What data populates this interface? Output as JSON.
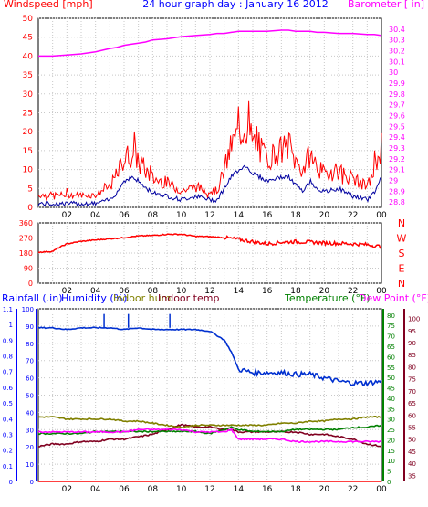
{
  "title": "24 hour graph day : January 16 2012",
  "colors": {
    "wind": "#ff0000",
    "gust": "#ff0000",
    "avgwind": "#0000a0",
    "baro": "#ff00ff",
    "dir": "#ff0000",
    "humidity": "#0030d0",
    "indoorhum": "#808000",
    "indoortemp": "#800020",
    "temperature": "#008000",
    "dewpoint": "#ff00ff",
    "rain": "#ff0000",
    "label_blue": "#0000ff",
    "label_green": "#008000",
    "label_maroon": "#800020"
  },
  "chart_data": [
    {
      "type": "line",
      "title": "24 hour graph day : January 16 2012",
      "ylabel": "Windspeed [mph]",
      "y2label": "Barometer [ in]",
      "ylim": [
        0,
        50
      ],
      "yticks": [
        "0",
        "5",
        "10",
        "15",
        "20",
        "25",
        "30",
        "35",
        "40",
        "45",
        "50"
      ],
      "y2lim": [
        28.75,
        30.5
      ],
      "y2ticks": [
        "28.8",
        "28.9",
        "29",
        "29.1",
        "29.2",
        "29.3",
        "29.4",
        "29.5",
        "29.6",
        "29.7",
        "29.8",
        "29.9",
        "30",
        "30.1",
        "30.2",
        "30.3",
        "30.4"
      ],
      "xticks": [
        "02",
        "04",
        "06",
        "08",
        "10",
        "12",
        "14",
        "16",
        "18",
        "20",
        "22",
        "00"
      ],
      "grid": true,
      "x": [
        0,
        1,
        2,
        3,
        4,
        5,
        5.5,
        6,
        6.5,
        7,
        7.5,
        8,
        9,
        10,
        11,
        12,
        12.5,
        13,
        13.5,
        14,
        14.5,
        15,
        16,
        17,
        17.5,
        18,
        18.5,
        19,
        19.5,
        20,
        21,
        22,
        23,
        23.5,
        24
      ],
      "series": [
        {
          "name": "Wind gust",
          "values": [
            3,
            3,
            3,
            3,
            3,
            5,
            8,
            12,
            13,
            12,
            9,
            7,
            6,
            4,
            5,
            4,
            4,
            9,
            15,
            18,
            20,
            16,
            12,
            14,
            15,
            11,
            9,
            13,
            10,
            8,
            9,
            7,
            5,
            9,
            15
          ]
        },
        {
          "name": "Average wind",
          "values": [
            1,
            1,
            1,
            1,
            1,
            2,
            4,
            7,
            8,
            7,
            5,
            4,
            3,
            2,
            3,
            2,
            2,
            5,
            8,
            10,
            11,
            9,
            7,
            8,
            8,
            6,
            4,
            7,
            5,
            4,
            5,
            3,
            2,
            4,
            8
          ]
        },
        {
          "name": "Barometer",
          "axis": "right",
          "values": [
            30.15,
            30.15,
            30.16,
            30.17,
            30.19,
            30.22,
            30.23,
            30.25,
            30.26,
            30.27,
            30.28,
            30.3,
            30.31,
            30.33,
            30.34,
            30.35,
            30.36,
            30.36,
            30.37,
            30.38,
            30.38,
            30.38,
            30.38,
            30.39,
            30.39,
            30.38,
            30.38,
            30.38,
            30.37,
            30.37,
            30.36,
            30.36,
            30.35,
            30.35,
            30.34
          ]
        }
      ]
    },
    {
      "type": "scatter",
      "ylim": [
        0,
        360
      ],
      "yticks": [
        "0",
        "90",
        "180",
        "270",
        "360"
      ],
      "compass": [
        "N",
        "W",
        "S",
        "E",
        "N"
      ],
      "xticks": [
        "02",
        "04",
        "06",
        "08",
        "10",
        "12",
        "14",
        "16",
        "18",
        "20",
        "22",
        "00"
      ],
      "grid": true,
      "series": [
        {
          "name": "Wind direction",
          "x": [
            0,
            1,
            1.5,
            2,
            3,
            4,
            5,
            6,
            7,
            8,
            9,
            10,
            11,
            12,
            13,
            14,
            15,
            16,
            17,
            18,
            19,
            20,
            21,
            22,
            23,
            24
          ],
          "values": [
            185,
            190,
            215,
            235,
            250,
            258,
            265,
            272,
            282,
            285,
            292,
            292,
            280,
            278,
            272,
            262,
            248,
            235,
            245,
            248,
            245,
            240,
            238,
            235,
            230,
            218
          ]
        }
      ]
    },
    {
      "type": "line",
      "legend": [
        "Rainfall (.in)",
        "Humidity (%)",
        "Indoor hum",
        "Indoor temp",
        "Temperature (°F)",
        "Dew Point (°F)"
      ],
      "axis_rain": {
        "ticks": [
          "0",
          "0.1",
          "0.2",
          "0.3",
          "0.4",
          "0.5",
          "0.6",
          "0.7",
          "0.8",
          "0.9",
          "1",
          "1.1"
        ],
        "ylim": [
          0,
          1.1
        ]
      },
      "axis_humidity": {
        "ticks": [
          "0",
          "10",
          "20",
          "30",
          "40",
          "50",
          "60",
          "70",
          "80",
          "90",
          "100"
        ],
        "ylim": [
          0,
          100
        ]
      },
      "axis_temp": {
        "ticks": [
          "0",
          "5",
          "10",
          "15",
          "20",
          "25",
          "30",
          "35",
          "40",
          "45",
          "50",
          "55",
          "60",
          "65",
          "70",
          "75",
          "80"
        ],
        "ylim": [
          0,
          83
        ]
      },
      "axis_dew": {
        "ticks": [
          "35",
          "40",
          "45",
          "50",
          "55",
          "60",
          "65",
          "70",
          "75",
          "80",
          "85",
          "90",
          "95",
          "100"
        ],
        "ylim": [
          32.5,
          104
        ]
      },
      "xticks": [
        "02",
        "04",
        "06",
        "08",
        "10",
        "12",
        "14",
        "16",
        "18",
        "20",
        "22",
        "00"
      ],
      "grid": true,
      "x": [
        0,
        1,
        2,
        3,
        4,
        5,
        6,
        7,
        8,
        9,
        10,
        11,
        12,
        13,
        13.5,
        14,
        15,
        16,
        17,
        18,
        19,
        20,
        21,
        22,
        23,
        24
      ],
      "series": [
        {
          "name": "Humidity",
          "axis": "humidity",
          "values": [
            89,
            89,
            88,
            89,
            89,
            89,
            88,
            89,
            88,
            88,
            88,
            88,
            87,
            82,
            75,
            65,
            63,
            63,
            63,
            62,
            62,
            60,
            58,
            57,
            57,
            58
          ]
        },
        {
          "name": "Indoor temp",
          "axis": "dew",
          "values": [
            47,
            48,
            48,
            49,
            49,
            50,
            50,
            51,
            52,
            54,
            56,
            55,
            55,
            54,
            54,
            53,
            53,
            53,
            53,
            53,
            52,
            52,
            51,
            50,
            48,
            47
          ]
        },
        {
          "name": "Indoor hum",
          "axis": "temp",
          "values": [
            31,
            31,
            30,
            30,
            30,
            30,
            29,
            29,
            28,
            27,
            26,
            27,
            27,
            27,
            27,
            27,
            27,
            27,
            28,
            28,
            29,
            29,
            30,
            30,
            31,
            31
          ]
        },
        {
          "name": "Temperature",
          "axis": "temp",
          "values": [
            23,
            23,
            23,
            23,
            24,
            24,
            24,
            24,
            24,
            24,
            24,
            24,
            23,
            25,
            26,
            25,
            24,
            24,
            24,
            25,
            25,
            25,
            25,
            26,
            26,
            27
          ]
        },
        {
          "name": "Dew Point",
          "axis": "dew",
          "values": [
            53,
            53,
            53,
            53,
            53,
            53,
            53,
            54,
            54,
            54,
            54,
            53,
            53,
            53,
            54,
            50,
            50,
            50,
            50,
            49,
            49,
            49,
            49,
            49,
            49,
            49
          ]
        },
        {
          "name": "Rainfall",
          "axis": "rain",
          "values": [
            0,
            0,
            0,
            0,
            0,
            0,
            0,
            0,
            0,
            0,
            0,
            0,
            0,
            0,
            0,
            0,
            0,
            0,
            0,
            0,
            0,
            0,
            0,
            0,
            0,
            0
          ]
        }
      ]
    }
  ]
}
